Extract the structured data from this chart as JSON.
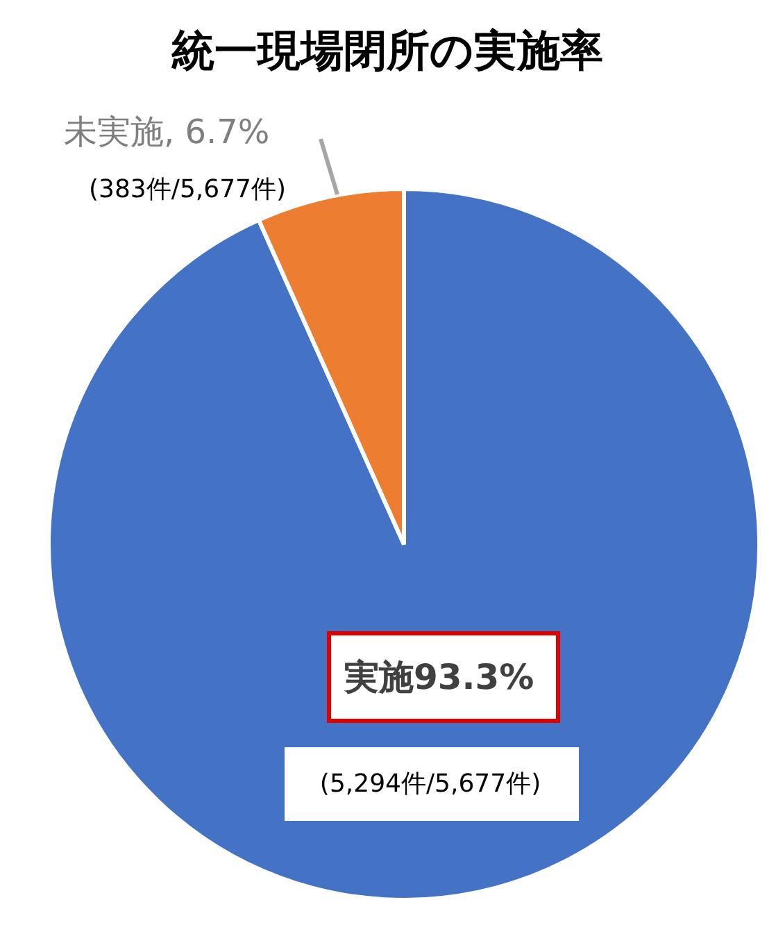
{
  "chart_data": {
    "type": "pie",
    "title": "統一現場閉所の実施率",
    "categories": [
      "実施",
      "未実施"
    ],
    "values": [
      93.3,
      6.7
    ],
    "colors": [
      "#4472c4",
      "#ed7d31"
    ],
    "value_labels": [
      "93.3%",
      ", 6.7%"
    ],
    "annotations": [
      "(5,294件/5,677件)",
      "(383件/5,677件)"
    ]
  }
}
